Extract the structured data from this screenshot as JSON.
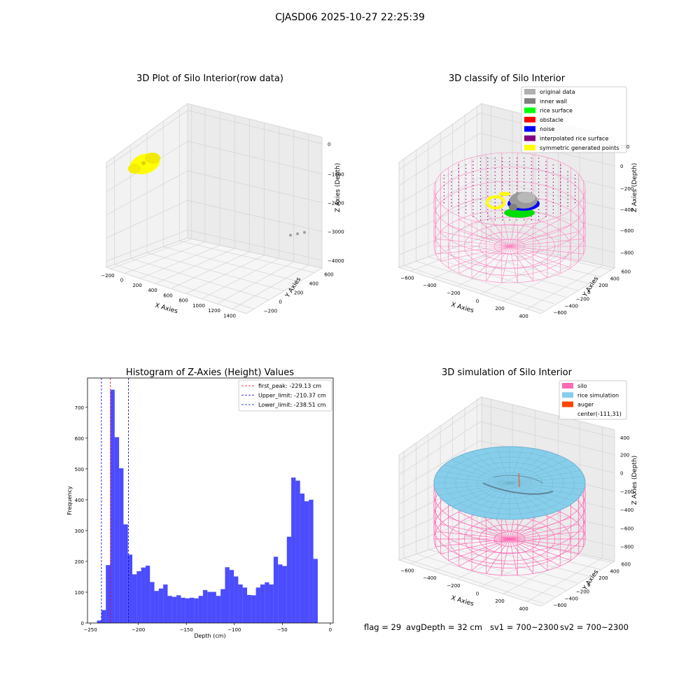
{
  "suptitle": "CJASD06 2025-10-27 22:25:39",
  "colors": {
    "original": "#b0b0b0",
    "inner_wall": "#808080",
    "rice_surface": "#00ff00",
    "obstacle": "#ff0000",
    "noise": "#0000ff",
    "interpolated": "#800080",
    "symmetric": "#ffff00",
    "silo": "#ff69b4",
    "rice_sim": "#87ceeb",
    "auger": "#ff4500",
    "hist_bar": "#0000ff",
    "peak_line": "#ff0000",
    "limit_line": "#0000cc"
  },
  "panels": {
    "raw": {
      "title": "3D Plot of Silo Interior(row data)",
      "xlabel": "X Axies",
      "ylabel": "Y Axies",
      "zlabel": "Z Axies (Depth)",
      "xticks": [
        "−200",
        "0",
        "200",
        "400",
        "600",
        "800",
        "1000",
        "1200",
        "1400"
      ],
      "yticks": [
        "−200",
        "0",
        "200",
        "400",
        "600"
      ],
      "zticks": [
        "0",
        "−1000",
        "−2000",
        "−3000",
        "−4000"
      ]
    },
    "classify": {
      "title": "3D classify of Silo Interior",
      "xlabel": "X Axies",
      "ylabel": "Y Axies",
      "zlabel": "Z Axies (Depth)",
      "xticks": [
        "−600",
        "−400",
        "−200",
        "0",
        "200",
        "400"
      ],
      "yticks": [
        "−600",
        "−400",
        "−200",
        "0",
        "200",
        "400",
        "600"
      ],
      "zticks": [
        "200",
        "0",
        "−200",
        "−400",
        "−600",
        "−800"
      ],
      "legend": [
        {
          "label": "original data",
          "color": "#b0b0b0"
        },
        {
          "label": "inner wall",
          "color": "#808080"
        },
        {
          "label": "rice surface",
          "color": "#00ff00"
        },
        {
          "label": "obstacle",
          "color": "#ff0000"
        },
        {
          "label": "noise",
          "color": "#0000ff"
        },
        {
          "label": "interpolated rice surface",
          "color": "#800080"
        },
        {
          "label": "symmetric generated points",
          "color": "#ffff00"
        }
      ]
    },
    "simulation": {
      "title": "3D simulation of Silo Interior",
      "xlabel": "X Axies",
      "ylabel": "Y Axies",
      "zlabel": "Z Axies (Depth)",
      "xticks": [
        "−600",
        "−400",
        "−200",
        "0",
        "200",
        "400"
      ],
      "yticks": [
        "−600",
        "−400",
        "−200",
        "0",
        "200",
        "400",
        "600"
      ],
      "zticks": [
        "400",
        "200",
        "0",
        "−200",
        "−400",
        "−600",
        "−800"
      ],
      "legend": [
        {
          "label": "silo",
          "color": "#ff69b4"
        },
        {
          "label": "rice simulation",
          "color": "#87ceeb"
        },
        {
          "label": "auger",
          "color": "#ff4500"
        },
        {
          "label": "center(-111,31)",
          "color": ""
        }
      ]
    }
  },
  "status": {
    "flag": "flag = 29",
    "avg_depth": "avgDepth = 32 cm",
    "sv1": "sv1 = 700~2300",
    "sv2": "sv2 = 700~2300"
  },
  "chart_data": {
    "type": "bar",
    "title": "Histogram of Z-Axies (Height) Values",
    "xlabel": "Depth (cm)",
    "ylabel": "Frequency",
    "xlim": [
      -253,
      3
    ],
    "ylim": [
      0,
      795
    ],
    "xticks": [
      -250,
      -200,
      -150,
      -100,
      -50,
      0
    ],
    "yticks": [
      0,
      100,
      200,
      300,
      400,
      500,
      600,
      700
    ],
    "bin_width": 4.6,
    "bins_start": [
      -243.1,
      -238.5,
      -233.9,
      -229.3,
      -224.7,
      -220.1,
      -215.5,
      -210.9,
      -206.3,
      -201.7,
      -197.1,
      -192.5,
      -187.9,
      -183.3,
      -178.7,
      -174.1,
      -169.5,
      -164.9,
      -160.3,
      -155.7,
      -151.1,
      -146.5,
      -141.9,
      -137.3,
      -132.7,
      -128.1,
      -123.5,
      -118.9,
      -114.3,
      -109.7,
      -105.1,
      -100.5,
      -95.9,
      -91.3,
      -86.7,
      -82.1,
      -77.5,
      -72.9,
      -68.3,
      -63.7,
      -59.1,
      -54.5,
      -49.9,
      -45.3,
      -40.7,
      -36.1,
      -31.5,
      -26.9,
      -22.3,
      -17.7,
      -13.1
    ],
    "values": [
      8,
      42,
      188,
      757,
      603,
      502,
      320,
      222,
      158,
      168,
      180,
      186,
      133,
      104,
      112,
      125,
      88,
      85,
      90,
      82,
      80,
      82,
      80,
      88,
      107,
      101,
      101,
      88,
      110,
      181,
      172,
      151,
      125,
      115,
      91,
      90,
      115,
      125,
      132,
      125,
      215,
      190,
      185,
      280,
      472,
      462,
      420,
      395,
      400,
      208,
      0
    ],
    "vlines": [
      {
        "label": "first_peak: -229.13 cm",
        "x": -229.13,
        "color": "#ff0000"
      },
      {
        "label": "Upper_limit: -210.37 cm",
        "x": -210.37,
        "color": "#0000cc"
      },
      {
        "label": "Lower_limit: -238.51 cm",
        "x": -238.51,
        "color": "#0000cc"
      }
    ]
  }
}
